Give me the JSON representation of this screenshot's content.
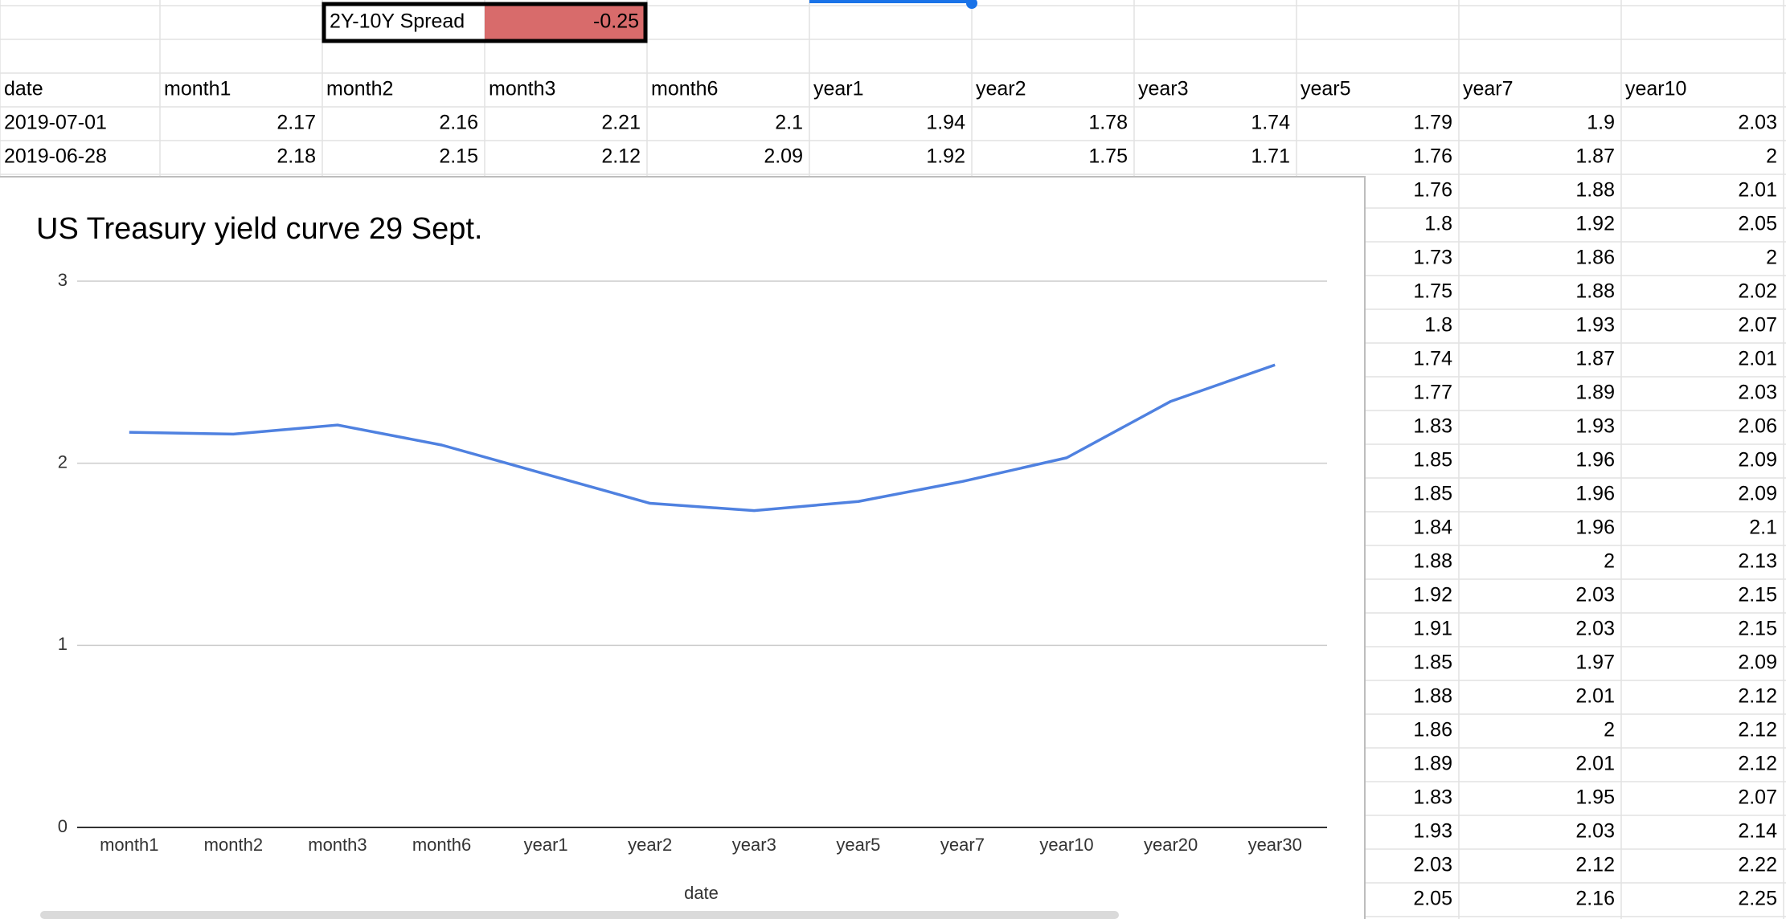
{
  "spread": {
    "label": "2Y-10Y Spread",
    "value": -0.25
  },
  "table": {
    "header": [
      "date",
      "month1",
      "month2",
      "month3",
      "month6",
      "year1",
      "year2",
      "year3",
      "year5",
      "year7",
      "year10"
    ],
    "rows": [
      [
        "2019-07-01",
        2.17,
        2.16,
        2.21,
        2.1,
        1.94,
        1.78,
        1.74,
        1.79,
        1.9,
        2.03
      ],
      [
        "2019-06-28",
        2.18,
        2.15,
        2.12,
        2.09,
        1.92,
        1.75,
        1.71,
        1.76,
        1.87,
        2
      ]
    ],
    "partial_rows": [
      [
        1.76,
        1.88,
        2.01
      ],
      [
        1.8,
        1.92,
        2.05
      ],
      [
        1.73,
        1.86,
        2
      ],
      [
        1.75,
        1.88,
        2.02
      ],
      [
        1.8,
        1.93,
        2.07
      ],
      [
        1.74,
        1.87,
        2.01
      ],
      [
        1.77,
        1.89,
        2.03
      ],
      [
        1.83,
        1.93,
        2.06
      ],
      [
        1.85,
        1.96,
        2.09
      ],
      [
        1.85,
        1.96,
        2.09
      ],
      [
        1.84,
        1.96,
        2.1
      ],
      [
        1.88,
        2,
        2.13
      ],
      [
        1.92,
        2.03,
        2.15
      ],
      [
        1.91,
        2.03,
        2.15
      ],
      [
        1.85,
        1.97,
        2.09
      ],
      [
        1.88,
        2.01,
        2.12
      ],
      [
        1.86,
        2,
        2.12
      ],
      [
        1.89,
        2.01,
        2.12
      ],
      [
        1.83,
        1.95,
        2.07
      ],
      [
        1.93,
        2.03,
        2.14
      ],
      [
        2.03,
        2.12,
        2.22
      ],
      [
        2.05,
        2.16,
        2.25
      ]
    ]
  },
  "chart_data": {
    "type": "line",
    "title": "US Treasury yield curve 29 Sept.",
    "x_label": "date",
    "categories": [
      "month1",
      "month2",
      "month3",
      "month6",
      "year1",
      "year2",
      "year3",
      "year5",
      "year7",
      "year10",
      "year20",
      "year30"
    ],
    "values": [
      2.17,
      2.16,
      2.21,
      2.1,
      1.94,
      1.78,
      1.74,
      1.79,
      1.9,
      2.03,
      2.34,
      2.54
    ],
    "color": "#4f81e0",
    "ylim": [
      0,
      3
    ],
    "yticks": [
      0,
      1,
      2,
      3
    ],
    "grid": true
  }
}
